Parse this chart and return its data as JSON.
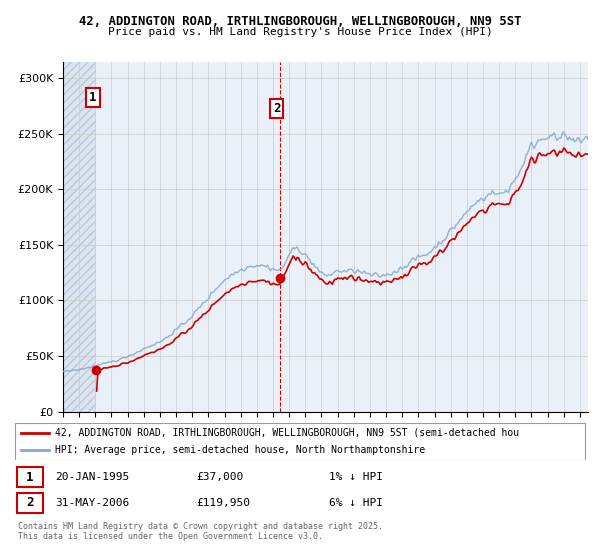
{
  "title1": "42, ADDINGTON ROAD, IRTHLINGBOROUGH, WELLINGBOROUGH, NN9 5ST",
  "title2": "Price paid vs. HM Land Registry's House Price Index (HPI)",
  "ytick_labels": [
    "£0",
    "£50K",
    "£100K",
    "£150K",
    "£200K",
    "£250K",
    "£300K"
  ],
  "yticks": [
    0,
    50000,
    100000,
    150000,
    200000,
    250000,
    300000
  ],
  "ylim": [
    0,
    315000
  ],
  "xmin": 1993.0,
  "xmax": 2025.5,
  "legend_line1": "42, ADDINGTON ROAD, IRTHLINGBOROUGH, WELLINGBOROUGH, NN9 5ST (semi-detached hou",
  "legend_line2": "HPI: Average price, semi-detached house, North Northamptonshire",
  "line1_color": "#cc0000",
  "line2_color": "#88aacc",
  "annotation1_label": "1",
  "annotation1_date": "20-JAN-1995",
  "annotation1_price": "£37,000",
  "annotation1_hpi": "1% ↓ HPI",
  "annotation2_label": "2",
  "annotation2_date": "31-MAY-2006",
  "annotation2_price": "£119,950",
  "annotation2_hpi": "6% ↓ HPI",
  "footer": "Contains HM Land Registry data © Crown copyright and database right 2025.\nThis data is licensed under the Open Government Licence v3.0.",
  "purchase1_x": 1995.06,
  "purchase1_y": 37000,
  "purchase2_x": 2006.42,
  "purchase2_y": 119950,
  "hatch_end_x": 1995.06,
  "background_fill_color": "#dce4f0",
  "background_hatch_color": "#b8c8dc"
}
